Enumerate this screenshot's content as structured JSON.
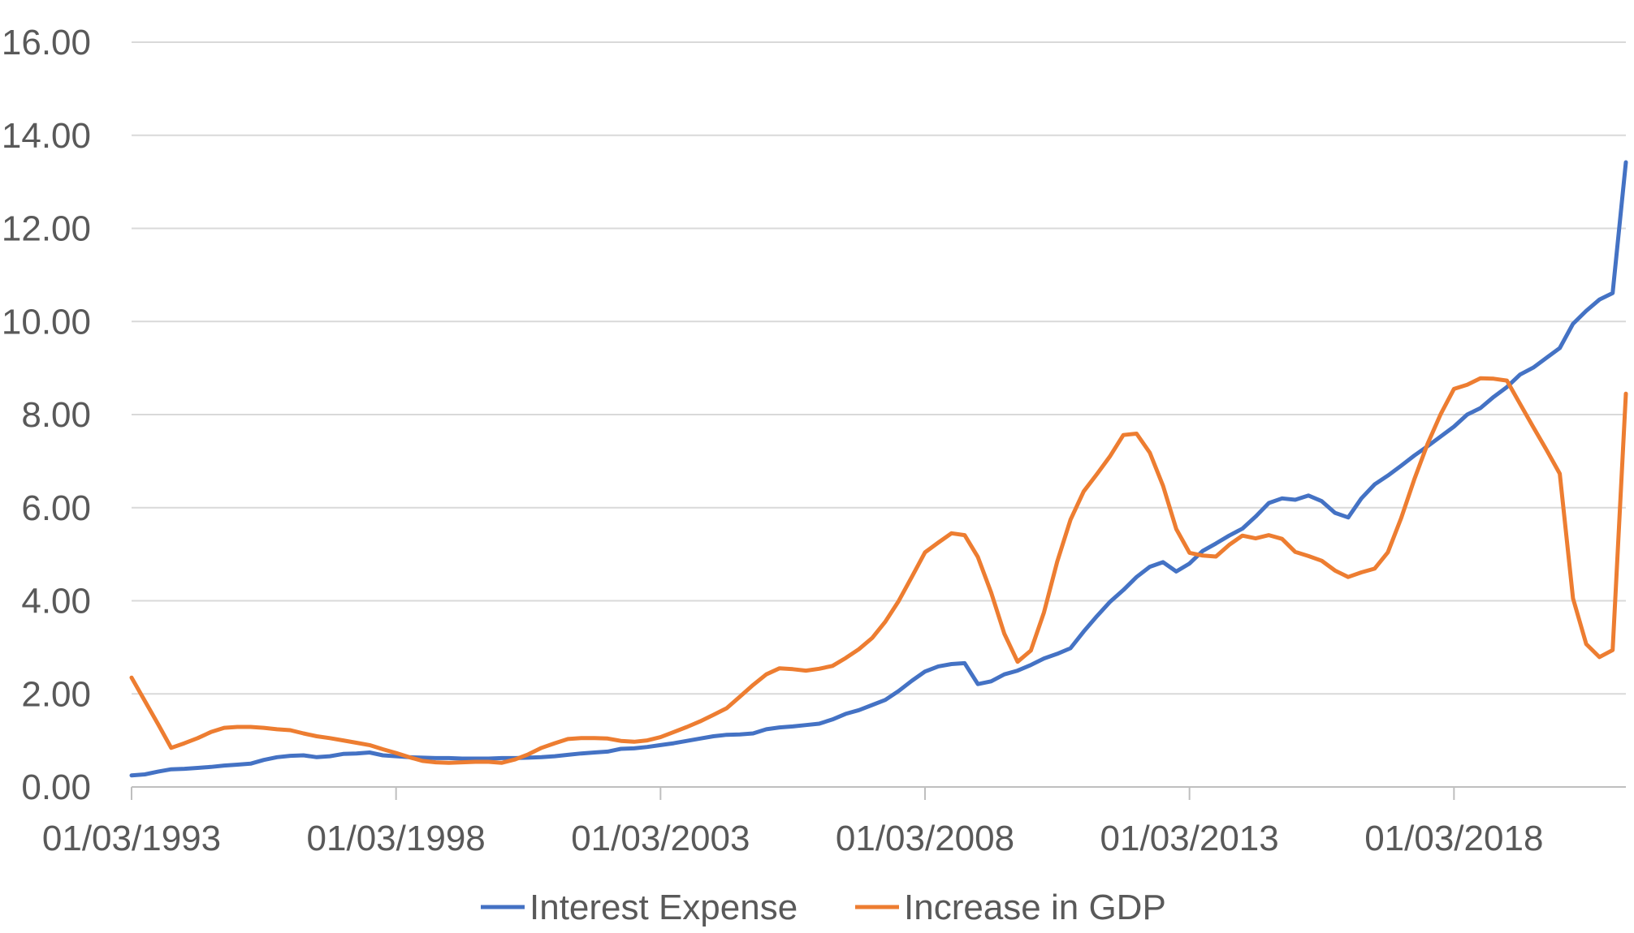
{
  "colors": {
    "interest": "#4472C4",
    "gdp": "#ED7D31",
    "grid": "#D9D9D9",
    "axis": "#BFBFBF",
    "text": "#595959"
  },
  "chart_data": {
    "type": "line",
    "title": "",
    "xlabel": "",
    "ylabel": "",
    "ylim": [
      0,
      16
    ],
    "yticks": [
      "0.00",
      "2.00",
      "4.00",
      "6.00",
      "8.00",
      "10.00",
      "12.00",
      "14.00",
      "16.00"
    ],
    "xticks": [
      "01/03/1993",
      "01/03/1998",
      "01/03/2003",
      "01/03/2008",
      "01/03/2013",
      "01/03/2018"
    ],
    "grid": "horizontal",
    "legend_position": "bottom",
    "x": [
      "1993-Q1",
      "1993-Q2",
      "1993-Q3",
      "1993-Q4",
      "1994-Q1",
      "1994-Q2",
      "1994-Q3",
      "1994-Q4",
      "1995-Q1",
      "1995-Q2",
      "1995-Q3",
      "1995-Q4",
      "1996-Q1",
      "1996-Q2",
      "1996-Q3",
      "1996-Q4",
      "1997-Q1",
      "1997-Q2",
      "1997-Q3",
      "1997-Q4",
      "1998-Q1",
      "1998-Q2",
      "1998-Q3",
      "1998-Q4",
      "1999-Q1",
      "1999-Q2",
      "1999-Q3",
      "1999-Q4",
      "2000-Q1",
      "2000-Q2",
      "2000-Q3",
      "2000-Q4",
      "2001-Q1",
      "2001-Q2",
      "2001-Q3",
      "2001-Q4",
      "2002-Q1",
      "2002-Q2",
      "2002-Q3",
      "2002-Q4",
      "2003-Q1",
      "2003-Q2",
      "2003-Q3",
      "2003-Q4",
      "2004-Q1",
      "2004-Q2",
      "2004-Q3",
      "2004-Q4",
      "2005-Q1",
      "2005-Q2",
      "2005-Q3",
      "2005-Q4",
      "2006-Q1",
      "2006-Q2",
      "2006-Q3",
      "2006-Q4",
      "2007-Q1",
      "2007-Q2",
      "2007-Q3",
      "2007-Q4",
      "2008-Q1",
      "2008-Q2",
      "2008-Q3",
      "2008-Q4",
      "2009-Q1",
      "2009-Q2",
      "2009-Q3",
      "2009-Q4",
      "2010-Q1",
      "2010-Q2",
      "2010-Q3",
      "2010-Q4",
      "2011-Q1",
      "2011-Q2",
      "2011-Q3",
      "2011-Q4",
      "2012-Q1",
      "2012-Q2",
      "2012-Q3",
      "2012-Q4",
      "2013-Q1",
      "2013-Q2",
      "2013-Q3",
      "2013-Q4",
      "2014-Q1",
      "2014-Q2",
      "2014-Q3",
      "2014-Q4",
      "2015-Q1",
      "2015-Q2",
      "2015-Q3",
      "2015-Q4",
      "2016-Q1",
      "2016-Q2",
      "2016-Q3",
      "2016-Q4",
      "2017-Q1",
      "2017-Q2",
      "2017-Q3",
      "2017-Q4",
      "2018-Q1",
      "2018-Q2",
      "2018-Q3",
      "2018-Q4",
      "2019-Q1",
      "2019-Q2",
      "2019-Q3",
      "2019-Q4",
      "2020-Q1",
      "2020-Q2",
      "2020-Q3",
      "2020-Q4",
      "2021-Q1",
      "2021-Q2"
    ],
    "series": [
      {
        "name": "Interest Expense",
        "color": "#4472C4",
        "values": [
          0.25,
          0.27,
          0.33,
          0.38,
          0.39,
          0.41,
          0.43,
          0.46,
          0.48,
          0.5,
          0.58,
          0.64,
          0.67,
          0.68,
          0.64,
          0.66,
          0.71,
          0.72,
          0.74,
          0.68,
          0.66,
          0.64,
          0.63,
          0.62,
          0.62,
          0.61,
          0.61,
          0.61,
          0.62,
          0.62,
          0.63,
          0.64,
          0.66,
          0.69,
          0.72,
          0.74,
          0.76,
          0.82,
          0.83,
          0.86,
          0.9,
          0.94,
          0.99,
          1.04,
          1.09,
          1.12,
          1.13,
          1.15,
          1.24,
          1.28,
          1.3,
          1.33,
          1.36,
          1.45,
          1.57,
          1.65,
          1.76,
          1.87,
          2.06,
          2.28,
          2.48,
          2.59,
          2.64,
          2.66,
          2.21,
          2.27,
          2.42,
          2.5,
          2.62,
          2.76,
          2.86,
          2.98,
          3.34,
          3.67,
          3.98,
          4.23,
          4.51,
          4.73,
          4.83,
          4.63,
          4.8,
          5.07,
          5.23,
          5.4,
          5.55,
          5.81,
          6.1,
          6.2,
          6.17,
          6.26,
          6.14,
          5.89,
          5.79,
          6.2,
          6.5,
          6.69,
          6.9,
          7.12,
          7.32,
          7.53,
          7.74,
          8.0,
          8.14,
          8.38,
          8.59,
          8.86,
          9.01,
          9.22,
          9.43,
          9.95,
          10.23,
          10.47,
          10.61,
          13.42
        ]
      },
      {
        "name": "Increase in GDP",
        "color": "#ED7D31",
        "values": [
          2.35,
          1.85,
          1.35,
          0.84,
          0.94,
          1.05,
          1.18,
          1.27,
          1.29,
          1.29,
          1.27,
          1.24,
          1.22,
          1.15,
          1.09,
          1.05,
          1.0,
          0.95,
          0.9,
          0.81,
          0.73,
          0.64,
          0.56,
          0.53,
          0.52,
          0.53,
          0.54,
          0.54,
          0.52,
          0.59,
          0.7,
          0.84,
          0.94,
          1.03,
          1.05,
          1.05,
          1.04,
          0.99,
          0.97,
          1.0,
          1.07,
          1.18,
          1.29,
          1.41,
          1.55,
          1.69,
          1.94,
          2.19,
          2.42,
          2.55,
          2.53,
          2.5,
          2.54,
          2.6,
          2.77,
          2.96,
          3.2,
          3.55,
          3.99,
          4.51,
          5.04,
          5.25,
          5.45,
          5.41,
          4.94,
          4.18,
          3.29,
          2.69,
          2.93,
          3.75,
          4.84,
          5.74,
          6.35,
          6.72,
          7.11,
          7.56,
          7.59,
          7.18,
          6.47,
          5.54,
          5.03,
          4.97,
          4.95,
          5.2,
          5.4,
          5.34,
          5.41,
          5.33,
          5.05,
          4.96,
          4.86,
          4.65,
          4.51,
          4.61,
          4.69,
          5.04,
          5.77,
          6.61,
          7.37,
          8.01,
          8.55,
          8.64,
          8.78,
          8.77,
          8.73,
          8.23,
          7.73,
          7.24,
          6.73,
          4.05,
          3.07,
          2.79,
          2.94,
          8.45
        ]
      }
    ]
  }
}
